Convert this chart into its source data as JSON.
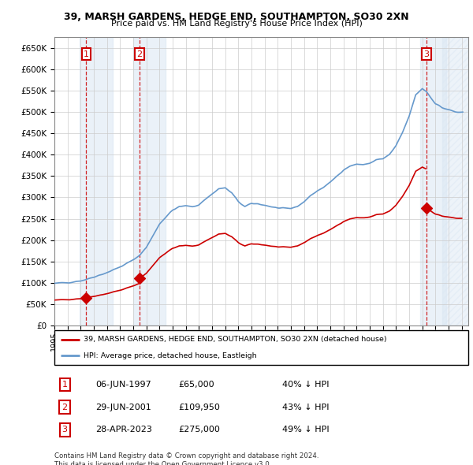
{
  "title1": "39, MARSH GARDENS, HEDGE END, SOUTHAMPTON, SO30 2XN",
  "title2": "Price paid vs. HM Land Registry's House Price Index (HPI)",
  "table_rows": [
    {
      "num": "1",
      "date": "06-JUN-1997",
      "price": "£65,000",
      "note": "40% ↓ HPI"
    },
    {
      "num": "2",
      "date": "29-JUN-2001",
      "price": "£109,950",
      "note": "43% ↓ HPI"
    },
    {
      "num": "3",
      "date": "28-APR-2023",
      "price": "£275,000",
      "note": "49% ↓ HPI"
    }
  ],
  "legend_line1": "39, MARSH GARDENS, HEDGE END, SOUTHAMPTON, SO30 2XN (detached house)",
  "legend_line2": "HPI: Average price, detached house, Eastleigh",
  "footer": "Contains HM Land Registry data © Crown copyright and database right 2024.\nThis data is licensed under the Open Government Licence v3.0.",
  "sale_color": "#cc0000",
  "hpi_color": "#6699cc",
  "ylim": [
    0,
    675000
  ],
  "yticks": [
    0,
    50000,
    100000,
    150000,
    200000,
    250000,
    300000,
    350000,
    400000,
    450000,
    500000,
    550000,
    600000,
    650000
  ],
  "xmin": 1995.0,
  "xmax": 2026.5,
  "band_color": "#dce8f4",
  "hatch_color": "#dce8f4",
  "grid_color": "#cccccc",
  "sale_yr": [
    1997.43,
    2001.49,
    2023.32
  ],
  "sale_prices": [
    65000,
    109950,
    275000
  ]
}
